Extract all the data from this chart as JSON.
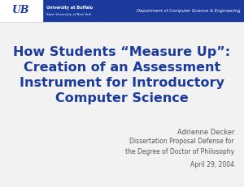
{
  "bg_color": "#f2f2f2",
  "header_bg": "#1a3a9e",
  "header_text": "Department of Computer Science & Engineering",
  "header_text_color": "#ffffff",
  "ub_text_line1": "University at Buffalo",
  "ub_text_line2": "State University of New York",
  "ub_text_color": "#ffffff",
  "title_lines": [
    "How Students “Measure Up”:",
    "Creation of an Assessment",
    "Instrument for Introductory",
    "Computer Science"
  ],
  "title_color": "#1a3a9e",
  "title_fontsize": 11.5,
  "author": "Adrienne Decker",
  "subtitle_line1": "Dissertation Proposal Defense for",
  "subtitle_line2": "the Degree of Doctor of Philosophy",
  "date": "April 29, 2004",
  "right_text_color": "#555555",
  "author_fontsize": 6.0,
  "subtitle_fontsize": 5.5,
  "date_fontsize": 5.5
}
